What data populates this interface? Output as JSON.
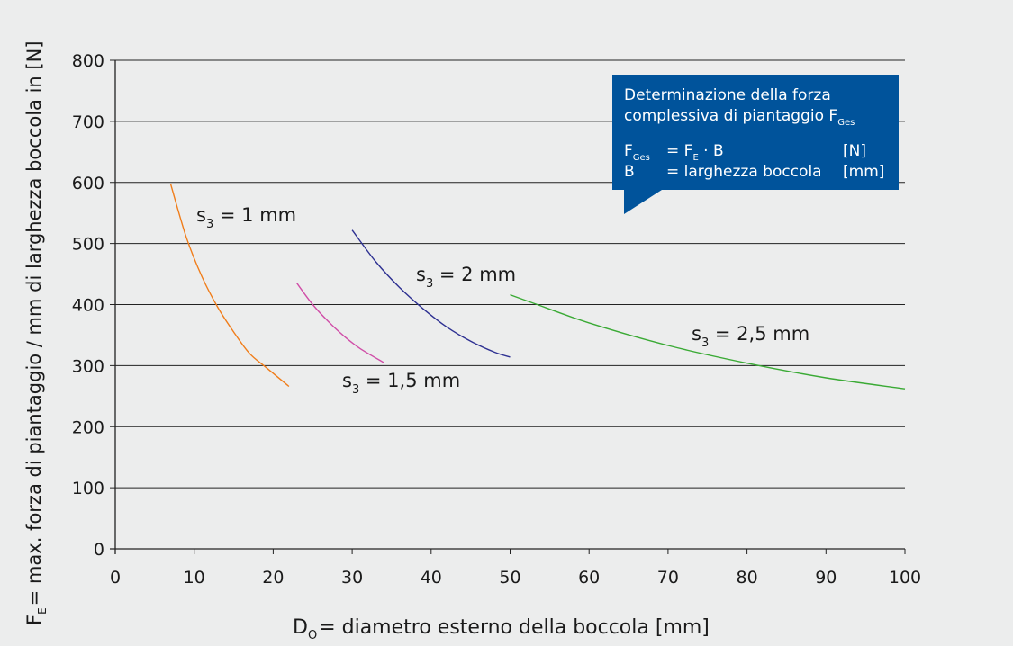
{
  "chart_data": {
    "type": "line",
    "xlabel": {
      "main": "D",
      "sub": "O",
      "rest": "= diametro esterno della boccola [mm]"
    },
    "ylabel": {
      "main": "F",
      "sub": "E",
      "rest": "= max. forza di piantaggio / mm di larghezza boccola in [N]"
    },
    "xlim": [
      0,
      100
    ],
    "ylim": [
      0,
      800
    ],
    "x_ticks": [
      "0",
      "10",
      "20",
      "30",
      "40",
      "50",
      "60",
      "70",
      "80",
      "90",
      "100"
    ],
    "y_ticks": [
      "0",
      "100",
      "200",
      "300",
      "400",
      "500",
      "600",
      "700",
      "800"
    ],
    "grid": "horizontal",
    "series": [
      {
        "name": "s3 = 1 mm",
        "label": {
          "main": "s",
          "sub": "3",
          "rest": " = 1 mm"
        },
        "color": "#f07d1a",
        "x": [
          7,
          9,
          11,
          13,
          15,
          17,
          19,
          22
        ],
        "y": [
          598,
          510,
          445,
          395,
          355,
          320,
          298,
          266
        ]
      },
      {
        "name": "s3 = 1,5 mm",
        "label": {
          "main": "s",
          "sub": "3",
          "rest": " = 1,5 mm"
        },
        "color": "#d04fa8",
        "x": [
          23,
          25,
          27,
          29,
          31,
          34
        ],
        "y": [
          435,
          400,
          372,
          348,
          328,
          305
        ]
      },
      {
        "name": "s3 = 2 mm",
        "label": {
          "main": "s",
          "sub": "3",
          "rest": " = 2 mm"
        },
        "color": "#2e3192",
        "x": [
          30,
          33,
          36,
          39,
          42,
          45,
          48,
          50
        ],
        "y": [
          522,
          470,
          428,
          393,
          363,
          340,
          322,
          314
        ]
      },
      {
        "name": "s3 = 2,5 mm",
        "label": {
          "main": "s",
          "sub": "3",
          "rest": " = 2,5 mm"
        },
        "color": "#3aaa35",
        "x": [
          50,
          53,
          60,
          70,
          80,
          90,
          100
        ],
        "y": [
          416,
          402,
          370,
          333,
          304,
          280,
          262
        ]
      }
    ]
  },
  "infobox": {
    "title_line1": "Determinazione della forza",
    "title_line2": "complessiva di piantaggio F",
    "title_sub": "Ges",
    "row1": {
      "var": "F",
      "var_sub": "Ges",
      "eq": "= F",
      "eq_sub": "E",
      "eq_rest": " · B",
      "unit": "[N]"
    },
    "row2": {
      "var": "B",
      "eq": "= larghezza boccola",
      "unit": "[mm]"
    },
    "bg_color": "#00539b"
  }
}
